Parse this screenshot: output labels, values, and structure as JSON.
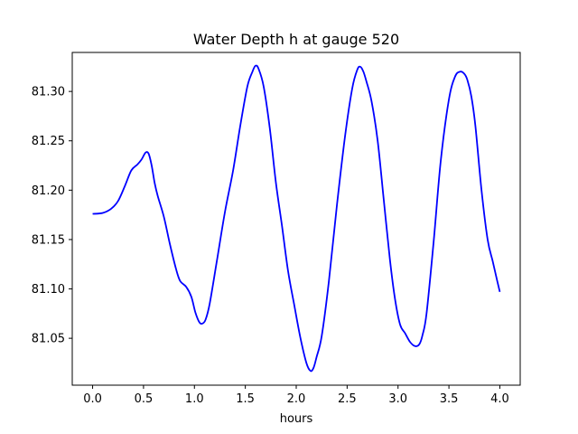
{
  "chart_data": {
    "type": "line",
    "title": "Water Depth h at gauge 520",
    "xlabel": "hours",
    "ylabel": "",
    "xlim": [
      -0.2,
      4.2
    ],
    "ylim": [
      81.0025,
      81.3395
    ],
    "xticks": [
      0.0,
      0.5,
      1.0,
      1.5,
      2.0,
      2.5,
      3.0,
      3.5,
      4.0
    ],
    "xtick_labels": [
      "0.0",
      "0.5",
      "1.0",
      "1.5",
      "2.0",
      "2.5",
      "3.0",
      "3.5",
      "4.0"
    ],
    "yticks": [
      81.05,
      81.1,
      81.15,
      81.2,
      81.25,
      81.3
    ],
    "ytick_labels": [
      "81.05",
      "81.10",
      "81.15",
      "81.20",
      "81.25",
      "81.30"
    ],
    "grid": false,
    "series": [
      {
        "color": "#0000ff",
        "x": [
          0.0,
          0.1,
          0.18,
          0.25,
          0.32,
          0.38,
          0.44,
          0.48,
          0.52,
          0.55,
          0.58,
          0.61,
          0.64,
          0.7,
          0.76,
          0.82,
          0.86,
          0.92,
          0.97,
          1.01,
          1.05,
          1.08,
          1.11,
          1.15,
          1.22,
          1.3,
          1.38,
          1.45,
          1.52,
          1.57,
          1.6,
          1.63,
          1.68,
          1.74,
          1.8,
          1.86,
          1.92,
          1.98,
          2.04,
          2.1,
          2.14,
          2.17,
          2.2,
          2.25,
          2.32,
          2.4,
          2.48,
          2.55,
          2.6,
          2.63,
          2.66,
          2.69,
          2.74,
          2.8,
          2.86,
          2.92,
          2.97,
          3.02,
          3.07,
          3.12,
          3.17,
          3.21,
          3.24,
          3.28,
          3.35,
          3.42,
          3.5,
          3.56,
          3.61,
          3.65,
          3.68,
          3.72,
          3.76,
          3.82,
          3.88,
          3.93,
          3.97,
          4.0
        ],
        "y": [
          81.176,
          81.177,
          81.181,
          81.189,
          81.205,
          81.22,
          81.226,
          81.231,
          81.238,
          81.237,
          81.225,
          81.207,
          81.194,
          81.173,
          81.145,
          81.12,
          81.108,
          81.102,
          81.092,
          81.076,
          81.066,
          81.065,
          81.069,
          81.085,
          81.128,
          81.178,
          81.22,
          81.265,
          81.305,
          81.32,
          81.326,
          81.323,
          81.305,
          81.263,
          81.208,
          81.164,
          81.118,
          81.084,
          81.051,
          81.025,
          81.017,
          81.02,
          81.031,
          81.052,
          81.107,
          81.185,
          81.255,
          81.303,
          81.322,
          81.325,
          81.32,
          81.31,
          81.29,
          81.25,
          81.19,
          81.13,
          81.09,
          81.064,
          81.055,
          81.046,
          81.042,
          81.044,
          81.053,
          81.075,
          81.148,
          81.23,
          81.292,
          81.315,
          81.32,
          81.318,
          81.312,
          81.295,
          81.265,
          81.2,
          81.15,
          81.128,
          81.11,
          81.097
        ]
      }
    ]
  }
}
